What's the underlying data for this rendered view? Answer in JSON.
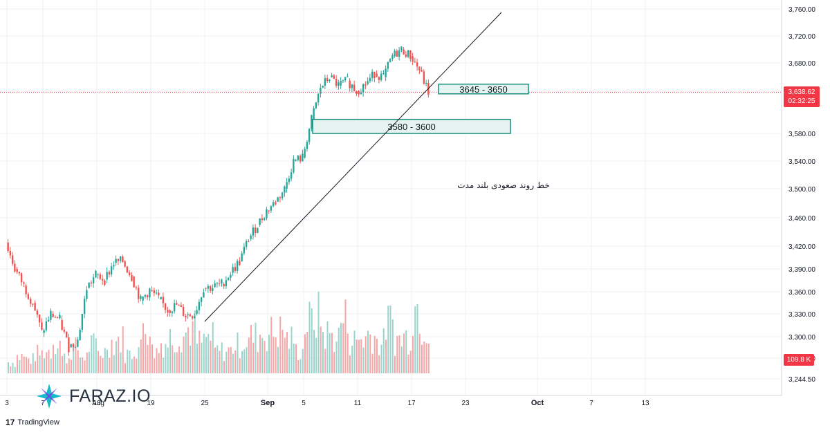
{
  "chart_data": {
    "type": "candlestick",
    "title": "",
    "y_axis": {
      "ticks": [
        "3,760.00",
        "3,720.00",
        "3,680.00",
        "3,640.00",
        "3,580.00",
        "3,540.00",
        "3,500.00",
        "3,460.00",
        "3,420.00",
        "3,390.00",
        "3,360.00",
        "3,330.00",
        "3,300.00",
        "3,270.00",
        "3,244.50"
      ],
      "tick_values": [
        3760,
        3720,
        3680,
        3640,
        3580,
        3540,
        3500,
        3460,
        3420,
        3390,
        3360,
        3330,
        3300,
        3270,
        3244.5
      ]
    },
    "x_axis": {
      "ticks": [
        "3",
        "Aug",
        "7",
        "13",
        "19",
        "25",
        "Sep",
        "5",
        "11",
        "17",
        "23",
        "Oct",
        "7",
        "13"
      ],
      "tick_dates": [
        "2023-08-03",
        "2023-08-01",
        "2023-08-07",
        "2023-08-13",
        "2023-08-19",
        "2023-08-25",
        "2023-09-01",
        "2023-09-05",
        "2023-09-11",
        "2023-09-17",
        "2023-09-23",
        "2023-10-01",
        "2023-10-07",
        "2023-10-13"
      ]
    },
    "close_path": [
      [
        "2023-08-03",
        3425
      ],
      [
        "2023-08-04",
        3390
      ],
      [
        "2023-08-05",
        3368
      ],
      [
        "2023-08-06",
        3345
      ],
      [
        "2023-08-07",
        3305
      ],
      [
        "2023-08-08",
        3330
      ],
      [
        "2023-08-09",
        3322
      ],
      [
        "2023-08-10",
        3285
      ],
      [
        "2023-08-11",
        3295
      ],
      [
        "2023-08-12",
        3365
      ],
      [
        "2023-08-13",
        3382
      ],
      [
        "2023-08-14",
        3376
      ],
      [
        "2023-08-15",
        3398
      ],
      [
        "2023-08-16",
        3400
      ],
      [
        "2023-08-17",
        3380
      ],
      [
        "2023-08-18",
        3348
      ],
      [
        "2023-08-19",
        3362
      ],
      [
        "2023-08-20",
        3350
      ],
      [
        "2023-08-21",
        3335
      ],
      [
        "2023-08-22",
        3342
      ],
      [
        "2023-08-23",
        3328
      ],
      [
        "2023-08-24",
        3330
      ],
      [
        "2023-08-25",
        3365
      ],
      [
        "2023-08-26",
        3366
      ],
      [
        "2023-08-27",
        3370
      ],
      [
        "2023-08-28",
        3385
      ],
      [
        "2023-08-29",
        3400
      ],
      [
        "2023-08-30",
        3430
      ],
      [
        "2023-08-31",
        3450
      ],
      [
        "2023-09-01",
        3470
      ],
      [
        "2023-09-02",
        3482
      ],
      [
        "2023-09-03",
        3500
      ],
      [
        "2023-09-04",
        3540
      ],
      [
        "2023-09-05",
        3545
      ],
      [
        "2023-09-06",
        3600
      ],
      [
        "2023-09-07",
        3645
      ],
      [
        "2023-09-08",
        3660
      ],
      [
        "2023-09-09",
        3648
      ],
      [
        "2023-09-10",
        3655
      ],
      [
        "2023-09-11",
        3640
      ],
      [
        "2023-09-12",
        3650
      ],
      [
        "2023-09-13",
        3665
      ],
      [
        "2023-09-14",
        3660
      ],
      [
        "2023-09-15",
        3690
      ],
      [
        "2023-09-16",
        3700
      ],
      [
        "2023-09-17",
        3690
      ],
      [
        "2023-09-18",
        3670
      ],
      [
        "2023-09-19",
        3638.62
      ]
    ],
    "volume_sample": [
      20,
      30,
      25,
      35,
      40,
      60,
      28,
      44,
      30,
      50,
      38,
      55,
      60,
      35,
      45,
      90,
      40,
      55,
      65,
      70,
      80,
      55,
      62,
      40,
      40,
      50,
      58,
      65,
      70,
      72,
      75,
      60,
      40,
      90,
      100,
      70,
      65,
      95,
      58,
      62,
      70,
      55,
      90,
      60,
      65,
      120,
      88,
      40
    ],
    "annotations": [
      {
        "label": "3645 - 3650",
        "y_low": 3645,
        "y_high": 3650,
        "x_start": "2023-09-20",
        "x_end": "2023-09-30"
      },
      {
        "label": "3580 - 3600",
        "y_low": 3580,
        "y_high": 3600,
        "x_start": "2023-09-06",
        "x_end": "2023-09-28"
      },
      {
        "label": "خط روند صعودی بلند مدت",
        "type": "trendline",
        "from": [
          "2023-08-25",
          3320
        ],
        "to": [
          "2023-09-27",
          3755
        ]
      }
    ],
    "current_price": "3,638.62",
    "countdown": "02:32:25",
    "volume_last": "109.8 K",
    "colors": {
      "up": "#26a69a",
      "down": "#ef5350",
      "vol_up": "#9ad4cc",
      "vol_down": "#f6a6a6",
      "zone_fill": "#e6f4f1",
      "zone_border": "#178f7a",
      "grid": "#eef0f3",
      "price_line": "#f23645"
    }
  },
  "brand": {
    "logo_text": "FARAZ.IO",
    "footer": "TradingView",
    "footer_mark": "17"
  }
}
